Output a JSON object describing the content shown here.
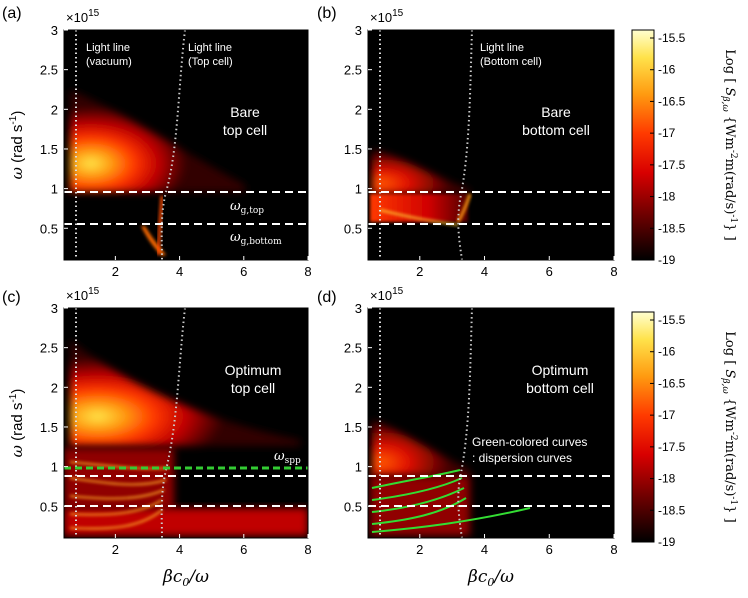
{
  "axes": {
    "x_ticks": [
      "2",
      "4",
      "6",
      "8"
    ],
    "y_ticks": [
      "0.5",
      "1",
      "1.5",
      "2",
      "2.5",
      "3"
    ],
    "x_multiplier": "×10",
    "x_multiplier_exp": "15",
    "ylabel_symbol": "ω",
    "ylabel_unit": " (rad s",
    "ylabel_unit_exp": "-1",
    "ylabel_close": ")",
    "xlabel_beta": "β",
    "xlabel_c": "c",
    "xlabel_sub": "0",
    "xlabel_tail": "/ω"
  },
  "colorbar": {
    "ticks": [
      "-15.5",
      "-16",
      "-16.5",
      "-17",
      "-17.5",
      "-18",
      "-18.5",
      "-19"
    ],
    "label": {
      "log": "Log",
      "s": "S",
      "s_sub": "β,ω",
      "unit1": "{Wm",
      "unit_exp1": "-2",
      "unit2": "m(rad/s)",
      "unit_exp2": "-1",
      "unit3": "}"
    },
    "colors": [
      "#000000",
      "#6a0000",
      "#c80000",
      "#ff3300",
      "#ff8800",
      "#ffcc22",
      "#ffffc8"
    ]
  },
  "panels": [
    {
      "id": "a",
      "label": "(a)",
      "title_line1": "Bare",
      "title_line2": "top cell",
      "light_line_vacuum": "Light line\n(vacuum)",
      "light_line_cell": "Light line\n(Top cell)",
      "omega_gtop": "ω",
      "omega_gtop_sub": "g,top",
      "omega_gbottom": "ω",
      "omega_gbottom_sub": "g,bottom"
    },
    {
      "id": "b",
      "label": "(b)",
      "title_line1": "Bare",
      "title_line2": "bottom cell",
      "light_line_cell": "Light line\n(Bottom cell)"
    },
    {
      "id": "c",
      "label": "(c)",
      "title_line1": "Optimum",
      "title_line2": "top cell",
      "omega_spp": "ω",
      "omega_spp_sub": "spp"
    },
    {
      "id": "d",
      "label": "(d)",
      "title_line1": "Optimum",
      "title_line2": "bottom cell",
      "note_line1": "Green-colored curves",
      "note_line2": ": dispersion curves"
    }
  ],
  "chart_data": [
    {
      "type": "heatmap",
      "panel": "(a)",
      "title": "Bare top cell",
      "xlabel": "βc0/ω",
      "ylabel": "ω (rad s-1)",
      "y_multiplier": "x10^15",
      "xlim": [
        0.4,
        8
      ],
      "ylim": [
        0.1,
        3
      ],
      "colorbar_range": [
        -19,
        -15.5
      ],
      "light_line_vacuum_x": 1.0,
      "light_line_cell_x": 3.55,
      "omega_g_top": 0.97,
      "omega_g_bottom": 0.56
    },
    {
      "type": "heatmap",
      "panel": "(b)",
      "title": "Bare bottom cell",
      "xlabel": "βc0/ω",
      "ylabel": "ω (rad s-1)",
      "xlim": [
        0.4,
        8
      ],
      "ylim": [
        0.1,
        3
      ],
      "light_line_vacuum_x": 1.0,
      "light_line_cell_x": 3.3,
      "omega_g_top": 0.97,
      "omega_g_bottom": 0.56
    },
    {
      "type": "heatmap",
      "panel": "(c)",
      "title": "Optimum top cell",
      "xlabel": "βc0/ω",
      "ylabel": "ω (rad s-1)",
      "xlim": [
        0.4,
        8
      ],
      "ylim": [
        0.1,
        3
      ],
      "light_line_vacuum_x": 1.0,
      "light_line_cell_x": 3.55,
      "omega_spp": 1.04,
      "omega_g_top": 0.97,
      "omega_g_bottom": 0.56
    },
    {
      "type": "heatmap",
      "panel": "(d)",
      "title": "Optimum bottom cell",
      "xlabel": "βc0/ω",
      "ylabel": "ω (rad s-1)",
      "xlim": [
        0.4,
        8
      ],
      "ylim": [
        0.1,
        3
      ],
      "light_line_vacuum_x": 1.0,
      "light_line_cell_x": 3.3,
      "omega_g_top": 0.97,
      "omega_g_bottom": 0.56
    }
  ]
}
